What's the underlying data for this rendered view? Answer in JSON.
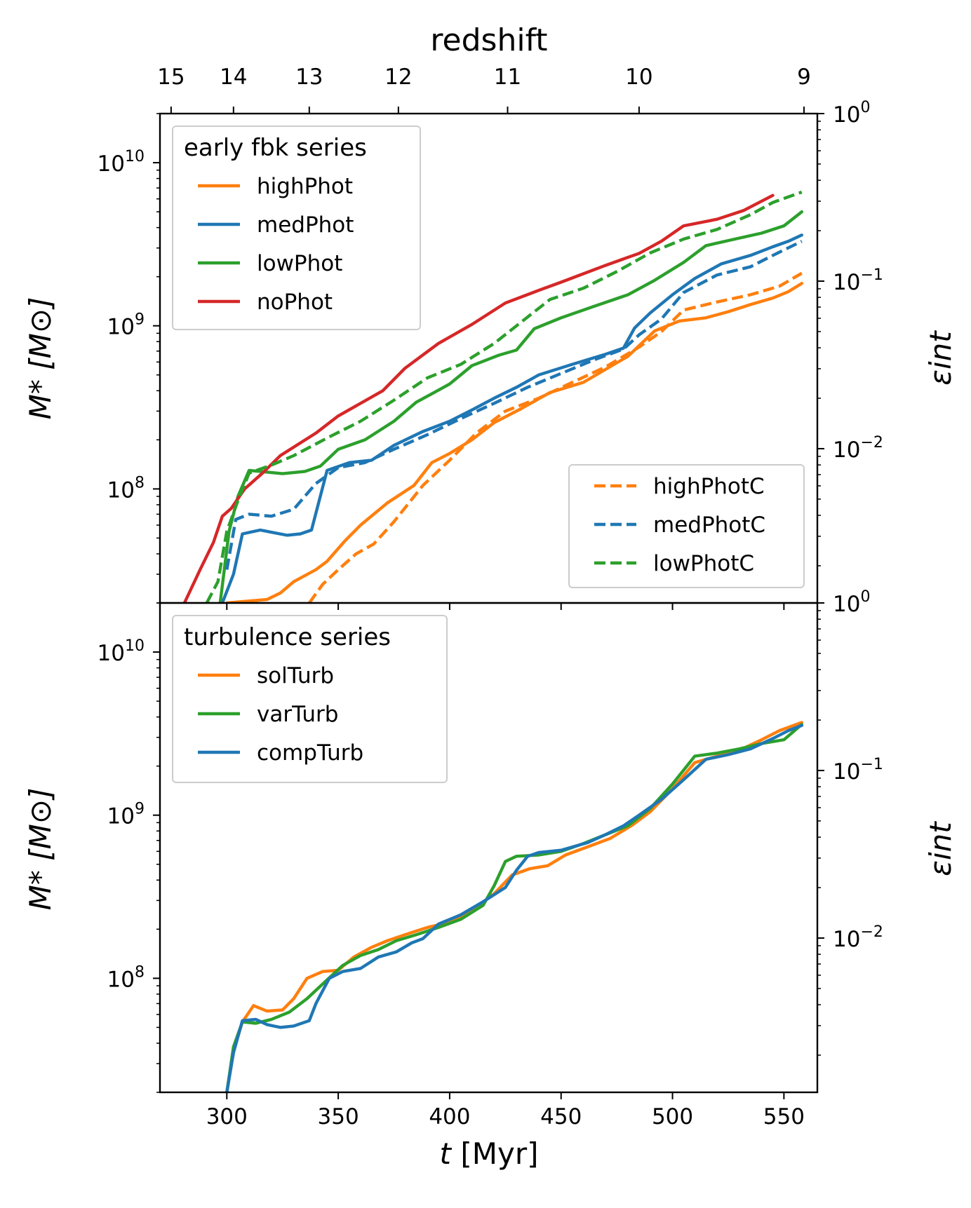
{
  "figure": {
    "top_axis_title": "redshift",
    "xlabel_var": "t",
    "xlabel_unit": " [Myr]",
    "ylabel": "M* [M⊙]",
    "ylabel_right": "εint",
    "x_ticks": [
      "300",
      "350",
      "400",
      "450",
      "500",
      "550"
    ],
    "redshift_ticks": [
      {
        "z": "15",
        "t": 275
      },
      {
        "z": "14",
        "t": 303
      },
      {
        "z": "13",
        "t": 337
      },
      {
        "z": "12",
        "t": 377
      },
      {
        "z": "11",
        "t": 426
      },
      {
        "z": "10",
        "t": 485
      },
      {
        "z": "9",
        "t": 559
      }
    ],
    "y_ticks": [
      {
        "base": "10",
        "exp": "10"
      },
      {
        "base": "10",
        "exp": "9"
      },
      {
        "base": "10",
        "exp": "8"
      }
    ],
    "y_right_ticks": [
      {
        "base": "10",
        "exp": "0"
      },
      {
        "base": "10",
        "exp": "−1"
      },
      {
        "base": "10",
        "exp": "−2"
      }
    ]
  },
  "chart_data": [
    {
      "type": "line",
      "panel": "top",
      "xlim": [
        270,
        565
      ],
      "ylim": [
        20000000.0,
        20000000000.0
      ],
      "yscale": "log",
      "y2scale": "log",
      "y2lim": [
        0.0012,
        1.0
      ],
      "legend_solid": {
        "title": "early fbk series",
        "placement": "upper left"
      },
      "legend_dashed": {
        "placement": "lower right"
      },
      "series": [
        {
          "name": "highPhot",
          "color": "#ff7f0e",
          "style": "solid",
          "x": [
            300,
            318,
            324,
            330,
            340,
            345,
            353,
            360,
            372,
            384,
            392,
            400,
            410,
            420,
            432,
            445,
            460,
            480,
            492,
            503,
            515,
            525,
            535,
            545,
            552,
            558
          ],
          "y": [
            20000000.0,
            21000000.0,
            23000000.0,
            27000000.0,
            32000000.0,
            36000000.0,
            48000000.0,
            60000000.0,
            82000000.0,
            105000000.0,
            145000000.0,
            165000000.0,
            200000000.0,
            255000000.0,
            310000000.0,
            390000000.0,
            450000000.0,
            650000000.0,
            930000000.0,
            1070000000.0,
            1120000000.0,
            1220000000.0,
            1350000000.0,
            1480000000.0,
            1620000000.0,
            1820000000.0
          ]
        },
        {
          "name": "medPhot",
          "color": "#1f77b4",
          "style": "solid",
          "x": [
            298,
            303,
            307,
            315,
            327,
            333,
            338,
            345,
            355,
            365,
            375,
            388,
            400,
            410,
            420,
            430,
            440,
            455,
            470,
            478,
            483,
            490,
            500,
            510,
            522,
            535,
            545,
            552,
            558
          ],
          "y": [
            20000000.0,
            30000000.0,
            53000000.0,
            56000000.0,
            52000000.0,
            53000000.0,
            56000000.0,
            130000000.0,
            145000000.0,
            150000000.0,
            185000000.0,
            225000000.0,
            260000000.0,
            305000000.0,
            360000000.0,
            420000000.0,
            500000000.0,
            580000000.0,
            670000000.0,
            730000000.0,
            970000000.0,
            1200000000.0,
            1550000000.0,
            1950000000.0,
            2400000000.0,
            2700000000.0,
            3050000000.0,
            3300000000.0,
            3600000000.0
          ]
        },
        {
          "name": "lowPhot",
          "color": "#2ca02c",
          "style": "solid",
          "x": [
            297,
            301,
            305,
            310,
            315,
            325,
            335,
            342,
            350,
            362,
            375,
            385,
            393,
            400,
            410,
            422,
            430,
            438,
            450,
            465,
            480,
            492,
            505,
            515,
            528,
            540,
            550,
            558
          ],
          "y": [
            20000000.0,
            55000000.0,
            90000000.0,
            130000000.0,
            128000000.0,
            124000000.0,
            128000000.0,
            138000000.0,
            175000000.0,
            200000000.0,
            260000000.0,
            340000000.0,
            390000000.0,
            440000000.0,
            570000000.0,
            660000000.0,
            710000000.0,
            960000000.0,
            1120000000.0,
            1320000000.0,
            1550000000.0,
            1900000000.0,
            2450000000.0,
            3100000000.0,
            3400000000.0,
            3700000000.0,
            4100000000.0,
            5000000000.0
          ]
        },
        {
          "name": "noPhot",
          "color": "#d62728",
          "style": "solid",
          "x": [
            281,
            288,
            294,
            298,
            302,
            308,
            316,
            324,
            340,
            350,
            370,
            380,
            395,
            410,
            425,
            440,
            450,
            470,
            485,
            495,
            505,
            520,
            532,
            545
          ],
          "y": [
            20000000.0,
            32000000.0,
            47000000.0,
            68000000.0,
            76000000.0,
            100000000.0,
            125000000.0,
            160000000.0,
            220000000.0,
            280000000.0,
            400000000.0,
            550000000.0,
            780000000.0,
            1020000000.0,
            1380000000.0,
            1650000000.0,
            1850000000.0,
            2350000000.0,
            2780000000.0,
            3300000000.0,
            4100000000.0,
            4500000000.0,
            5100000000.0,
            6300000000.0
          ]
        },
        {
          "name": "highPhotC",
          "color": "#ff7f0e",
          "style": "dashed",
          "x": [
            337,
            343,
            350,
            358,
            366,
            375,
            388,
            400,
            412,
            425,
            440,
            455,
            470,
            485,
            495,
            505,
            520,
            535,
            548,
            558
          ],
          "y": [
            20000000.0,
            26000000.0,
            32000000.0,
            40000000.0,
            46000000.0,
            63000000.0,
            105000000.0,
            150000000.0,
            220000000.0,
            300000000.0,
            360000000.0,
            450000000.0,
            560000000.0,
            740000000.0,
            920000000.0,
            1250000000.0,
            1400000000.0,
            1550000000.0,
            1750000000.0,
            2100000000.0
          ]
        },
        {
          "name": "medPhotC",
          "color": "#1f77b4",
          "style": "dashed",
          "x": [
            300,
            304,
            310,
            320,
            330,
            340,
            350,
            362,
            375,
            390,
            405,
            420,
            435,
            450,
            465,
            478,
            485,
            495,
            505,
            520,
            535,
            545,
            558
          ],
          "y": [
            32000000.0,
            65000000.0,
            70000000.0,
            68000000.0,
            75000000.0,
            108000000.0,
            135000000.0,
            145000000.0,
            175000000.0,
            215000000.0,
            270000000.0,
            335000000.0,
            420000000.0,
            510000000.0,
            620000000.0,
            720000000.0,
            880000000.0,
            1100000000.0,
            1600000000.0,
            2050000000.0,
            2300000000.0,
            2700000000.0,
            3300000000.0
          ]
        },
        {
          "name": "lowPhotC",
          "color": "#2ca02c",
          "style": "dashed",
          "x": [
            291,
            296,
            300,
            305,
            310,
            320,
            330,
            345,
            360,
            375,
            390,
            405,
            420,
            430,
            445,
            460,
            475,
            490,
            505,
            520,
            535,
            545,
            558
          ],
          "y": [
            20000000.0,
            27000000.0,
            55000000.0,
            85000000.0,
            125000000.0,
            140000000.0,
            160000000.0,
            205000000.0,
            260000000.0,
            350000000.0,
            480000000.0,
            580000000.0,
            780000000.0,
            1000000000.0,
            1450000000.0,
            1700000000.0,
            2150000000.0,
            2800000000.0,
            3400000000.0,
            3900000000.0,
            4800000000.0,
            5700000000.0,
            6600000000.0
          ]
        }
      ]
    },
    {
      "type": "line",
      "panel": "bottom",
      "xlim": [
        270,
        565
      ],
      "ylim": [
        20000000.0,
        20000000000.0
      ],
      "yscale": "log",
      "y2scale": "log",
      "y2lim": [
        0.0012,
        1.0
      ],
      "legend": {
        "title": "turbulence series",
        "placement": "upper left"
      },
      "series": [
        {
          "name": "solTurb",
          "color": "#ff7f0e",
          "style": "solid",
          "x": [
            300,
            303,
            307,
            312,
            318,
            325,
            330,
            336,
            343,
            350,
            357,
            365,
            372,
            380,
            390,
            400,
            410,
            420,
            428,
            436,
            444,
            452,
            462,
            472,
            482,
            490,
            500,
            510,
            520,
            530,
            540,
            548,
            558
          ],
          "y": [
            20000000.0,
            36000000.0,
            54000000.0,
            68000000.0,
            63000000.0,
            64000000.0,
            75000000.0,
            100000000.0,
            110000000.0,
            112000000.0,
            135000000.0,
            155000000.0,
            170000000.0,
            185000000.0,
            205000000.0,
            220000000.0,
            260000000.0,
            330000000.0,
            430000000.0,
            470000000.0,
            490000000.0,
            570000000.0,
            640000000.0,
            720000000.0,
            870000000.0,
            1050000000.0,
            1450000000.0,
            2100000000.0,
            2300000000.0,
            2500000000.0,
            2900000000.0,
            3300000000.0,
            3700000000.0
          ]
        },
        {
          "name": "varTurb",
          "color": "#2ca02c",
          "style": "solid",
          "x": [
            300,
            303,
            307,
            313,
            320,
            328,
            336,
            344,
            352,
            360,
            368,
            376,
            385,
            395,
            405,
            415,
            420,
            425,
            430,
            440,
            450,
            460,
            470,
            480,
            490,
            500,
            510,
            520,
            530,
            540,
            550,
            558
          ],
          "y": [
            20000000.0,
            38000000.0,
            54000000.0,
            53000000.0,
            56000000.0,
            62000000.0,
            75000000.0,
            95000000.0,
            120000000.0,
            138000000.0,
            150000000.0,
            170000000.0,
            185000000.0,
            205000000.0,
            230000000.0,
            280000000.0,
            370000000.0,
            520000000.0,
            560000000.0,
            570000000.0,
            600000000.0,
            670000000.0,
            760000000.0,
            860000000.0,
            1100000000.0,
            1550000000.0,
            2300000000.0,
            2400000000.0,
            2550000000.0,
            2750000000.0,
            2900000000.0,
            3600000000.0
          ]
        },
        {
          "name": "compTurb",
          "color": "#1f77b4",
          "style": "solid",
          "x": [
            300,
            303,
            307,
            313,
            318,
            324,
            330,
            337,
            340,
            346,
            352,
            360,
            368,
            376,
            383,
            388,
            395,
            405,
            415,
            425,
            430,
            435,
            440,
            450,
            462,
            470,
            478,
            485,
            495,
            505,
            515,
            525,
            535,
            545,
            552,
            558
          ],
          "y": [
            20000000.0,
            35000000.0,
            55000000.0,
            56000000.0,
            52000000.0,
            50000000.0,
            51000000.0,
            55000000.0,
            70000000.0,
            100000000.0,
            110000000.0,
            115000000.0,
            135000000.0,
            145000000.0,
            165000000.0,
            175000000.0,
            215000000.0,
            245000000.0,
            295000000.0,
            360000000.0,
            460000000.0,
            560000000.0,
            590000000.0,
            610000000.0,
            680000000.0,
            760000000.0,
            860000000.0,
            1000000000.0,
            1250000000.0,
            1650000000.0,
            2200000000.0,
            2350000000.0,
            2550000000.0,
            2950000000.0,
            3300000000.0,
            3550000000.0
          ]
        }
      ]
    }
  ]
}
